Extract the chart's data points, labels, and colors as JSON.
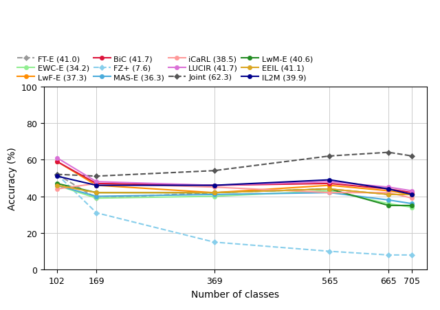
{
  "x": [
    102,
    169,
    369,
    565,
    665,
    705
  ],
  "series": [
    {
      "name": "FT-E (41.0)",
      "values": [
        52,
        39,
        42,
        44,
        41,
        41
      ],
      "color": "#999999",
      "linestyle": "--",
      "marker": "D",
      "markersize": 4.5,
      "zorder": 3
    },
    {
      "name": "FZ+ (7.6)",
      "values": [
        52,
        31,
        15,
        10,
        8,
        8
      ],
      "color": "#87CEEB",
      "linestyle": "--",
      "marker": "D",
      "markersize": 4.5,
      "zorder": 2
    },
    {
      "name": "Joint (62.3)",
      "values": [
        52,
        51,
        54,
        62,
        64,
        62
      ],
      "color": "#555555",
      "linestyle": "--",
      "marker": "D",
      "markersize": 4.5,
      "zorder": 3
    },
    {
      "name": "EWC-E (34.2)",
      "values": [
        46,
        39,
        40,
        43,
        36,
        34
      ],
      "color": "#90EE90",
      "linestyle": "-",
      "marker": "o",
      "markersize": 4.5,
      "zorder": 3
    },
    {
      "name": "MAS-E (36.3)",
      "values": [
        46,
        40,
        41,
        42,
        38,
        36
      ],
      "color": "#4AABDB",
      "linestyle": "-",
      "marker": "o",
      "markersize": 4.5,
      "zorder": 3
    },
    {
      "name": "LwM-E (40.6)",
      "values": [
        47,
        42,
        42,
        44,
        35,
        35
      ],
      "color": "#228B22",
      "linestyle": "-",
      "marker": "o",
      "markersize": 4.5,
      "zorder": 3
    },
    {
      "name": "LwF-E (37.3)",
      "values": [
        59,
        46,
        42,
        46,
        43,
        41
      ],
      "color": "#FF8C00",
      "linestyle": "-",
      "marker": "o",
      "markersize": 4.5,
      "zorder": 3
    },
    {
      "name": "iCaRL (38.5)",
      "values": [
        44,
        47,
        45,
        42,
        42,
        39
      ],
      "color": "#FF9999",
      "linestyle": "-",
      "marker": "o",
      "markersize": 4.5,
      "zorder": 3
    },
    {
      "name": "EEIL (41.1)",
      "values": [
        46,
        42,
        42,
        44,
        41,
        41
      ],
      "color": "#DAA520",
      "linestyle": "-",
      "marker": "o",
      "markersize": 4.5,
      "zorder": 3
    },
    {
      "name": "BiC (41.7)",
      "values": [
        59,
        47,
        46,
        47,
        44,
        42
      ],
      "color": "#DC143C",
      "linestyle": "-",
      "marker": "o",
      "markersize": 4.5,
      "zorder": 3
    },
    {
      "name": "LUCIR (41.7)",
      "values": [
        61,
        48,
        46,
        48,
        45,
        43
      ],
      "color": "#DA70D6",
      "linestyle": "-",
      "marker": "o",
      "markersize": 4.5,
      "zorder": 3
    },
    {
      "name": "IL2M (39.9)",
      "values": [
        51,
        46,
        46,
        49,
        44,
        41
      ],
      "color": "#00008B",
      "linestyle": "-",
      "marker": "o",
      "markersize": 4.5,
      "zorder": 3
    }
  ],
  "legend_order": [
    "FT-E (41.0)",
    "EWC-E (34.2)",
    "LwF-E (37.3)",
    "BiC (41.7)",
    "FZ+ (7.6)",
    "MAS-E (36.3)",
    "iCaRL (38.5)",
    "LUCIR (41.7)",
    "Joint (62.3)",
    "LwM-E (40.6)",
    "EEIL (41.1)",
    "IL2M (39.9)"
  ],
  "xlabel": "Number of classes",
  "ylabel": "Accuracy (%)",
  "ylim": [
    0,
    100
  ],
  "yticks": [
    0,
    20,
    40,
    60,
    80,
    100
  ],
  "xticks": [
    102,
    169,
    369,
    565,
    665,
    705
  ],
  "background_color": "#ffffff",
  "grid": true,
  "grid_color": "#cccccc",
  "legend_fontsize": 8.2,
  "axis_fontsize": 10,
  "tick_fontsize": 9
}
